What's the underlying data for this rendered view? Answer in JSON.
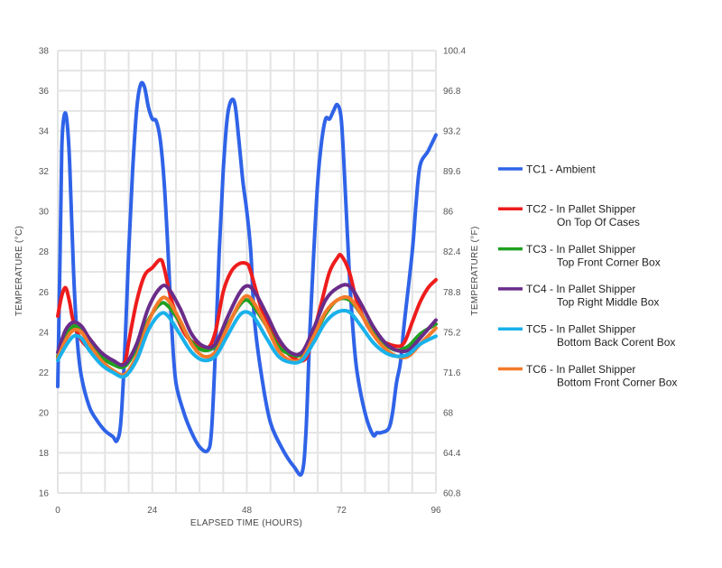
{
  "chart_data": {
    "type": "line",
    "xlabel": "ELAPSED TIME (HOURS)",
    "ylabel_left": "TEMPERATURE (°C)",
    "ylabel_right": "TEMPERATURE (°F)",
    "xlim": [
      0,
      96
    ],
    "ylim_left": [
      16,
      38
    ],
    "ylim_right": [
      60.8,
      100.4
    ],
    "x_ticks": [
      "0",
      "24",
      "48",
      "72",
      "96"
    ],
    "y_ticks_left": [
      "16",
      "18",
      "20",
      "22",
      "24",
      "26",
      "28",
      "30",
      "32",
      "34",
      "36",
      "38"
    ],
    "y_ticks_right": [
      "60.8",
      "64.4",
      "68",
      "71.6",
      "75.2",
      "78.8",
      "82.4",
      "86",
      "89.6",
      "93.2",
      "96.8",
      "100.4"
    ],
    "grid": true,
    "legend_position": "right",
    "series": [
      {
        "name": "TC1 - Ambient",
        "name_line2": "",
        "color": "#2f63e8",
        "points": [
          [
            0,
            21.3
          ],
          [
            0.6,
            28
          ],
          [
            1,
            33
          ],
          [
            1.5,
            34.6
          ],
          [
            2.2,
            34.7
          ],
          [
            3,
            32.5
          ],
          [
            4,
            27
          ],
          [
            5,
            23.5
          ],
          [
            6,
            21.8
          ],
          [
            8,
            20.3
          ],
          [
            10,
            19.6
          ],
          [
            12,
            19.1
          ],
          [
            14,
            18.8
          ],
          [
            15,
            18.6
          ],
          [
            16,
            19.5
          ],
          [
            17,
            23
          ],
          [
            18,
            28
          ],
          [
            19,
            32
          ],
          [
            20,
            35
          ],
          [
            21,
            36.3
          ],
          [
            22,
            36.2
          ],
          [
            23,
            35.2
          ],
          [
            24,
            34.6
          ],
          [
            25,
            34.5
          ],
          [
            26,
            33.6
          ],
          [
            27,
            31.5
          ],
          [
            28,
            28
          ],
          [
            29,
            24
          ],
          [
            30,
            21.5
          ],
          [
            32,
            20
          ],
          [
            34,
            19
          ],
          [
            36,
            18.3
          ],
          [
            38,
            18.1
          ],
          [
            39,
            19
          ],
          [
            40,
            23
          ],
          [
            41,
            28
          ],
          [
            42,
            32
          ],
          [
            43,
            34.6
          ],
          [
            44,
            35.5
          ],
          [
            45,
            35.3
          ],
          [
            46,
            33.5
          ],
          [
            47,
            31.5
          ],
          [
            48,
            30
          ],
          [
            49,
            28
          ],
          [
            50,
            24.5
          ],
          [
            52,
            21.5
          ],
          [
            54,
            19.5
          ],
          [
            57,
            18.2
          ],
          [
            60,
            17.3
          ],
          [
            62,
            17
          ],
          [
            63,
            19
          ],
          [
            64,
            24
          ],
          [
            65,
            28
          ],
          [
            66,
            31.5
          ],
          [
            67,
            33.5
          ],
          [
            68,
            34.6
          ],
          [
            69,
            34.6
          ],
          [
            70,
            35
          ],
          [
            71,
            35.3
          ],
          [
            72,
            34.5
          ],
          [
            73,
            31
          ],
          [
            74,
            27
          ],
          [
            75,
            24
          ],
          [
            76,
            22
          ],
          [
            78,
            20
          ],
          [
            80,
            18.9
          ],
          [
            81,
            19
          ],
          [
            82,
            19
          ],
          [
            84,
            19.2
          ],
          [
            85,
            20
          ],
          [
            86,
            21.5
          ],
          [
            87,
            22.5
          ],
          [
            88,
            24.5
          ],
          [
            90,
            28
          ],
          [
            91,
            30.5
          ],
          [
            92,
            32.3
          ],
          [
            94,
            33
          ],
          [
            96,
            33.8
          ]
        ]
      },
      {
        "name": "TC2 - In Pallet Shipper",
        "name_line2": "On Top Of Cases",
        "color": "#ee1c1c",
        "points": [
          [
            0,
            24.8
          ],
          [
            1,
            25.8
          ],
          [
            2,
            26.2
          ],
          [
            3,
            25.5
          ],
          [
            4,
            24.5
          ],
          [
            6,
            23.6
          ],
          [
            9,
            23
          ],
          [
            12,
            22.6
          ],
          [
            15,
            22.4
          ],
          [
            17,
            22.5
          ],
          [
            18,
            23.5
          ],
          [
            20,
            25.5
          ],
          [
            22,
            26.8
          ],
          [
            24,
            27.2
          ],
          [
            26,
            27.6
          ],
          [
            27,
            27.2
          ],
          [
            29,
            25.5
          ],
          [
            32,
            24
          ],
          [
            35,
            23.4
          ],
          [
            38,
            23.2
          ],
          [
            40,
            24
          ],
          [
            42,
            26
          ],
          [
            44,
            27
          ],
          [
            46,
            27.4
          ],
          [
            48,
            27.4
          ],
          [
            49,
            27
          ],
          [
            52,
            25
          ],
          [
            56,
            23.5
          ],
          [
            60,
            22.7
          ],
          [
            63,
            22.7
          ],
          [
            65,
            24
          ],
          [
            67,
            25.5
          ],
          [
            69,
            27
          ],
          [
            71,
            27.7
          ],
          [
            72,
            27.8
          ],
          [
            74,
            27
          ],
          [
            76,
            25.5
          ],
          [
            79,
            24.2
          ],
          [
            82,
            23.6
          ],
          [
            86,
            23.3
          ],
          [
            88,
            23.5
          ],
          [
            90,
            24.5
          ],
          [
            92,
            25.5
          ],
          [
            94,
            26.2
          ],
          [
            96,
            26.6
          ]
        ]
      },
      {
        "name": "TC3 - In Pallet Shipper",
        "name_line2": "Top Front Corner Box",
        "color": "#20a020",
        "points": [
          [
            0,
            22.8
          ],
          [
            2,
            23.8
          ],
          [
            4,
            24.3
          ],
          [
            6,
            24.1
          ],
          [
            8,
            23.5
          ],
          [
            11,
            22.8
          ],
          [
            14,
            22.4
          ],
          [
            17,
            22.3
          ],
          [
            20,
            23.2
          ],
          [
            23,
            24.6
          ],
          [
            26,
            25.4
          ],
          [
            28,
            25.3
          ],
          [
            31,
            24.5
          ],
          [
            34,
            23.5
          ],
          [
            37,
            23.1
          ],
          [
            40,
            23.3
          ],
          [
            43,
            24.3
          ],
          [
            46,
            25.3
          ],
          [
            48,
            25.6
          ],
          [
            50,
            25.2
          ],
          [
            53,
            24.3
          ],
          [
            56,
            23.3
          ],
          [
            59,
            22.9
          ],
          [
            62,
            22.9
          ],
          [
            65,
            23.8
          ],
          [
            68,
            24.9
          ],
          [
            71,
            25.6
          ],
          [
            74,
            25.6
          ],
          [
            77,
            24.9
          ],
          [
            80,
            24
          ],
          [
            83,
            23.4
          ],
          [
            86,
            23.1
          ],
          [
            89,
            23.3
          ],
          [
            92,
            23.9
          ],
          [
            96,
            24.4
          ]
        ]
      },
      {
        "name": "TC4 -  In Pallet Shipper",
        "name_line2": "Top Right Middle Box",
        "color": "#6a2c8a",
        "points": [
          [
            0,
            23
          ],
          [
            2,
            24.1
          ],
          [
            4,
            24.5
          ],
          [
            6,
            24.3
          ],
          [
            8,
            23.7
          ],
          [
            11,
            23
          ],
          [
            14,
            22.6
          ],
          [
            17,
            22.4
          ],
          [
            20,
            23.4
          ],
          [
            23,
            25.2
          ],
          [
            26,
            26.2
          ],
          [
            28,
            26.2
          ],
          [
            31,
            25.2
          ],
          [
            34,
            23.9
          ],
          [
            37,
            23.3
          ],
          [
            40,
            23.4
          ],
          [
            43,
            24.7
          ],
          [
            46,
            25.9
          ],
          [
            48,
            26.3
          ],
          [
            50,
            26
          ],
          [
            53,
            24.9
          ],
          [
            56,
            23.7
          ],
          [
            59,
            23
          ],
          [
            62,
            23
          ],
          [
            65,
            24.2
          ],
          [
            68,
            25.6
          ],
          [
            71,
            26.2
          ],
          [
            74,
            26.3
          ],
          [
            77,
            25.4
          ],
          [
            80,
            24.3
          ],
          [
            83,
            23.5
          ],
          [
            86,
            23.1
          ],
          [
            89,
            23.1
          ],
          [
            92,
            23.7
          ],
          [
            96,
            24.6
          ]
        ]
      },
      {
        "name": "TC5 - In Pallet Shipper",
        "name_line2": "Bottom Back Corent Box",
        "color": "#1ab1ea",
        "points": [
          [
            0,
            22.6
          ],
          [
            2,
            23.3
          ],
          [
            4,
            23.8
          ],
          [
            6,
            23.7
          ],
          [
            8,
            23.1
          ],
          [
            11,
            22.4
          ],
          [
            14,
            22
          ],
          [
            17,
            21.8
          ],
          [
            20,
            22.6
          ],
          [
            23,
            24.1
          ],
          [
            26,
            24.9
          ],
          [
            28,
            24.8
          ],
          [
            31,
            23.9
          ],
          [
            34,
            23
          ],
          [
            37,
            22.6
          ],
          [
            40,
            22.8
          ],
          [
            43,
            23.8
          ],
          [
            46,
            24.8
          ],
          [
            48,
            25
          ],
          [
            50,
            24.7
          ],
          [
            53,
            23.7
          ],
          [
            56,
            22.8
          ],
          [
            59,
            22.5
          ],
          [
            62,
            22.6
          ],
          [
            65,
            23.5
          ],
          [
            68,
            24.5
          ],
          [
            71,
            25
          ],
          [
            74,
            25
          ],
          [
            77,
            24.3
          ],
          [
            80,
            23.5
          ],
          [
            83,
            23
          ],
          [
            86,
            22.8
          ],
          [
            89,
            22.9
          ],
          [
            92,
            23.4
          ],
          [
            96,
            23.8
          ]
        ]
      },
      {
        "name": "TC6 - In Pallet Shipper",
        "name_line2": "Bottom Front Corner Box",
        "color": "#f47a2a",
        "points": [
          [
            0,
            22.7
          ],
          [
            2,
            23.6
          ],
          [
            4,
            24.1
          ],
          [
            6,
            24
          ],
          [
            8,
            23.4
          ],
          [
            11,
            22.6
          ],
          [
            14,
            22.1
          ],
          [
            17,
            21.9
          ],
          [
            20,
            22.8
          ],
          [
            23,
            24.5
          ],
          [
            26,
            25.6
          ],
          [
            28,
            25.6
          ],
          [
            31,
            24.6
          ],
          [
            34,
            23.4
          ],
          [
            37,
            22.8
          ],
          [
            40,
            23
          ],
          [
            43,
            24.2
          ],
          [
            46,
            25.4
          ],
          [
            48,
            25.8
          ],
          [
            50,
            25.4
          ],
          [
            53,
            24.3
          ],
          [
            56,
            23.1
          ],
          [
            59,
            22.6
          ],
          [
            62,
            22.7
          ],
          [
            65,
            23.8
          ],
          [
            68,
            25
          ],
          [
            71,
            25.6
          ],
          [
            74,
            25.7
          ],
          [
            77,
            24.9
          ],
          [
            80,
            23.9
          ],
          [
            83,
            23.2
          ],
          [
            86,
            22.8
          ],
          [
            89,
            22.8
          ],
          [
            92,
            23.4
          ],
          [
            96,
            24.2
          ]
        ]
      }
    ]
  }
}
